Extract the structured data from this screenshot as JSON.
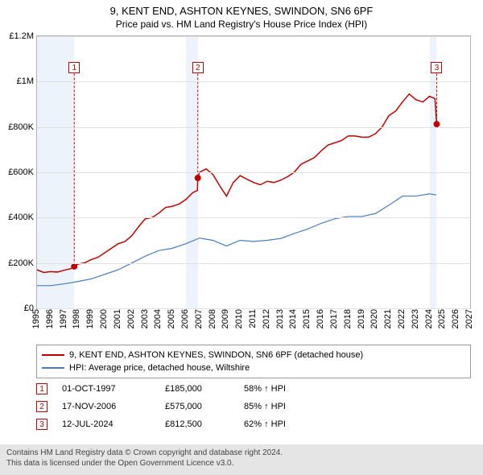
{
  "title_line1": "9, KENT END, ASHTON KEYNES, SWINDON, SN6 6PF",
  "title_line2": "Price paid vs. HM Land Registry's House Price Index (HPI)",
  "chart": {
    "type": "line",
    "x_domain": [
      1995,
      2027
    ],
    "y_domain": [
      0,
      1200000
    ],
    "y_ticks": [
      {
        "v": 0,
        "label": "£0"
      },
      {
        "v": 200000,
        "label": "£200K"
      },
      {
        "v": 400000,
        "label": "£400K"
      },
      {
        "v": 600000,
        "label": "£600K"
      },
      {
        "v": 800000,
        "label": "£800K"
      },
      {
        "v": 1000000,
        "label": "£1M"
      },
      {
        "v": 1200000,
        "label": "£1.2M"
      }
    ],
    "x_ticks": [
      1995,
      1996,
      1997,
      1998,
      1999,
      2000,
      2001,
      2002,
      2003,
      2004,
      2005,
      2006,
      2007,
      2008,
      2009,
      2010,
      2011,
      2012,
      2013,
      2014,
      2015,
      2016,
      2017,
      2018,
      2019,
      2020,
      2021,
      2022,
      2023,
      2024,
      2025,
      2026,
      2027
    ],
    "shaded_ranges": [
      {
        "from": 1995,
        "to": 1997.75
      },
      {
        "from": 2006,
        "to": 2006.88
      },
      {
        "from": 2024,
        "to": 2024.53
      }
    ],
    "series": [
      {
        "name": "price_paid",
        "color": "#c00000",
        "width": 1.5,
        "points": [
          {
            "x": 1995.0,
            "y": 170000
          },
          {
            "x": 1995.5,
            "y": 158000
          },
          {
            "x": 1996.0,
            "y": 162000
          },
          {
            "x": 1996.5,
            "y": 160000
          },
          {
            "x": 1997.0,
            "y": 168000
          },
          {
            "x": 1997.5,
            "y": 175000
          },
          {
            "x": 1997.75,
            "y": 185000
          },
          {
            "x": 1998.0,
            "y": 195000
          },
          {
            "x": 1998.5,
            "y": 200000
          },
          {
            "x": 1999.0,
            "y": 215000
          },
          {
            "x": 1999.5,
            "y": 225000
          },
          {
            "x": 2000.0,
            "y": 245000
          },
          {
            "x": 2000.5,
            "y": 265000
          },
          {
            "x": 2001.0,
            "y": 285000
          },
          {
            "x": 2001.5,
            "y": 295000
          },
          {
            "x": 2002.0,
            "y": 320000
          },
          {
            "x": 2002.5,
            "y": 360000
          },
          {
            "x": 2003.0,
            "y": 395000
          },
          {
            "x": 2003.5,
            "y": 400000
          },
          {
            "x": 2004.0,
            "y": 420000
          },
          {
            "x": 2004.5,
            "y": 445000
          },
          {
            "x": 2005.0,
            "y": 450000
          },
          {
            "x": 2005.5,
            "y": 460000
          },
          {
            "x": 2006.0,
            "y": 480000
          },
          {
            "x": 2006.5,
            "y": 510000
          },
          {
            "x": 2006.85,
            "y": 520000
          },
          {
            "x": 2006.88,
            "y": 575000
          },
          {
            "x": 2007.0,
            "y": 600000
          },
          {
            "x": 2007.5,
            "y": 615000
          },
          {
            "x": 2008.0,
            "y": 590000
          },
          {
            "x": 2008.5,
            "y": 540000
          },
          {
            "x": 2009.0,
            "y": 495000
          },
          {
            "x": 2009.5,
            "y": 555000
          },
          {
            "x": 2010.0,
            "y": 585000
          },
          {
            "x": 2010.5,
            "y": 570000
          },
          {
            "x": 2011.0,
            "y": 555000
          },
          {
            "x": 2011.5,
            "y": 545000
          },
          {
            "x": 2012.0,
            "y": 560000
          },
          {
            "x": 2012.5,
            "y": 555000
          },
          {
            "x": 2013.0,
            "y": 565000
          },
          {
            "x": 2013.5,
            "y": 580000
          },
          {
            "x": 2014.0,
            "y": 600000
          },
          {
            "x": 2014.5,
            "y": 635000
          },
          {
            "x": 2015.0,
            "y": 650000
          },
          {
            "x": 2015.5,
            "y": 665000
          },
          {
            "x": 2016.0,
            "y": 695000
          },
          {
            "x": 2016.5,
            "y": 720000
          },
          {
            "x": 2017.0,
            "y": 730000
          },
          {
            "x": 2017.5,
            "y": 740000
          },
          {
            "x": 2018.0,
            "y": 760000
          },
          {
            "x": 2018.5,
            "y": 760000
          },
          {
            "x": 2019.0,
            "y": 755000
          },
          {
            "x": 2019.5,
            "y": 755000
          },
          {
            "x": 2020.0,
            "y": 770000
          },
          {
            "x": 2020.5,
            "y": 800000
          },
          {
            "x": 2021.0,
            "y": 850000
          },
          {
            "x": 2021.5,
            "y": 870000
          },
          {
            "x": 2022.0,
            "y": 910000
          },
          {
            "x": 2022.5,
            "y": 945000
          },
          {
            "x": 2023.0,
            "y": 920000
          },
          {
            "x": 2023.5,
            "y": 910000
          },
          {
            "x": 2024.0,
            "y": 935000
          },
          {
            "x": 2024.4,
            "y": 925000
          },
          {
            "x": 2024.53,
            "y": 812500
          }
        ]
      },
      {
        "name": "hpi",
        "color": "#4a7ebb",
        "width": 1.2,
        "points": [
          {
            "x": 1995.0,
            "y": 100000
          },
          {
            "x": 1996.0,
            "y": 100000
          },
          {
            "x": 1997.0,
            "y": 108000
          },
          {
            "x": 1998.0,
            "y": 118000
          },
          {
            "x": 1999.0,
            "y": 130000
          },
          {
            "x": 2000.0,
            "y": 150000
          },
          {
            "x": 2001.0,
            "y": 170000
          },
          {
            "x": 2002.0,
            "y": 200000
          },
          {
            "x": 2003.0,
            "y": 230000
          },
          {
            "x": 2004.0,
            "y": 255000
          },
          {
            "x": 2005.0,
            "y": 265000
          },
          {
            "x": 2006.0,
            "y": 285000
          },
          {
            "x": 2007.0,
            "y": 310000
          },
          {
            "x": 2008.0,
            "y": 300000
          },
          {
            "x": 2009.0,
            "y": 275000
          },
          {
            "x": 2010.0,
            "y": 300000
          },
          {
            "x": 2011.0,
            "y": 295000
          },
          {
            "x": 2012.0,
            "y": 300000
          },
          {
            "x": 2013.0,
            "y": 308000
          },
          {
            "x": 2014.0,
            "y": 330000
          },
          {
            "x": 2015.0,
            "y": 350000
          },
          {
            "x": 2016.0,
            "y": 375000
          },
          {
            "x": 2017.0,
            "y": 395000
          },
          {
            "x": 2018.0,
            "y": 405000
          },
          {
            "x": 2019.0,
            "y": 405000
          },
          {
            "x": 2020.0,
            "y": 418000
          },
          {
            "x": 2021.0,
            "y": 455000
          },
          {
            "x": 2022.0,
            "y": 495000
          },
          {
            "x": 2023.0,
            "y": 495000
          },
          {
            "x": 2024.0,
            "y": 505000
          },
          {
            "x": 2024.5,
            "y": 500000
          }
        ]
      }
    ],
    "sale_markers": [
      {
        "n": "1",
        "x": 1997.75,
        "y": 185000,
        "box_y": 1060000
      },
      {
        "n": "2",
        "x": 2006.88,
        "y": 575000,
        "box_y": 1060000
      },
      {
        "n": "3",
        "x": 2024.53,
        "y": 812500,
        "box_y": 1060000
      }
    ]
  },
  "legend": {
    "items": [
      {
        "color": "#c00000",
        "label": "9, KENT END, ASHTON KEYNES, SWINDON, SN6 6PF (detached house)"
      },
      {
        "color": "#4a7ebb",
        "label": "HPI: Average price, detached house, Wiltshire"
      }
    ]
  },
  "sales": [
    {
      "n": "1",
      "date": "01-OCT-1997",
      "price": "£185,000",
      "pct": "58% ↑ HPI"
    },
    {
      "n": "2",
      "date": "17-NOV-2006",
      "price": "£575,000",
      "pct": "85% ↑ HPI"
    },
    {
      "n": "3",
      "date": "12-JUL-2024",
      "price": "£812,500",
      "pct": "62% ↑ HPI"
    }
  ],
  "footer": {
    "line1": "Contains HM Land Registry data © Crown copyright and database right 2024.",
    "line2": "This data is licensed under the Open Government Licence v3.0."
  }
}
